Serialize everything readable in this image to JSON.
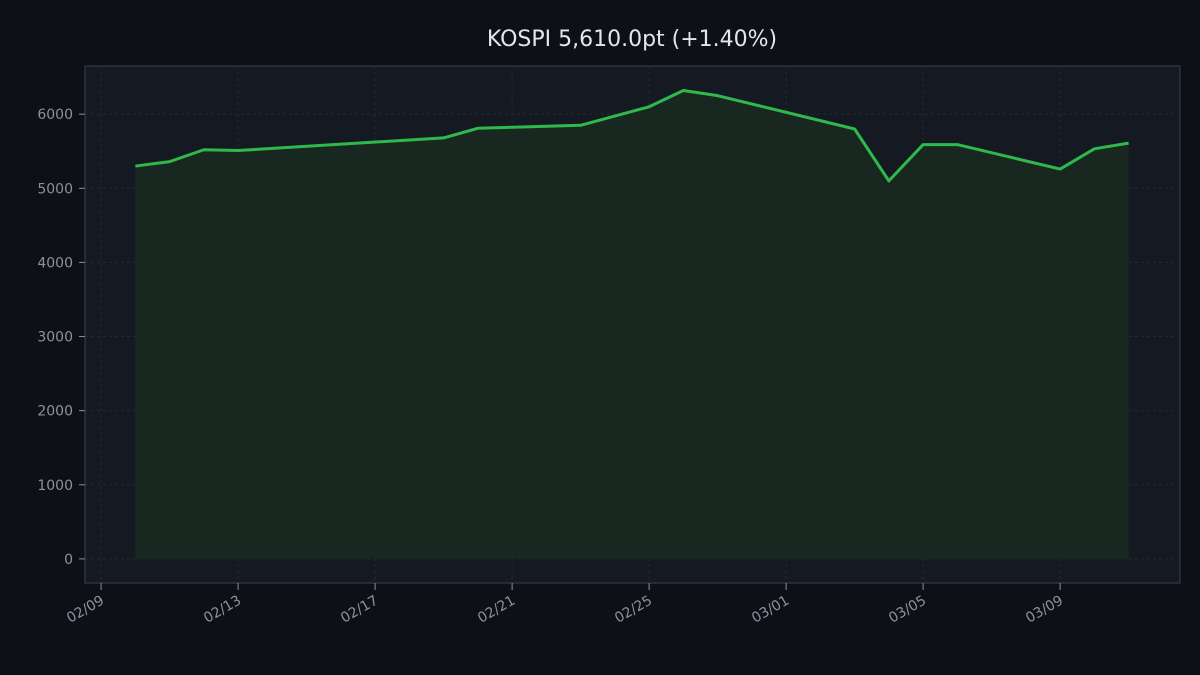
{
  "chart_data": {
    "type": "area",
    "title": "KOSPI   5,610.0pt   (+1.40%)",
    "xlabel": "",
    "ylabel": "",
    "x_base_date": "02/09",
    "x_ticks": [
      {
        "day": 0,
        "label": "02/09"
      },
      {
        "day": 4,
        "label": "02/13"
      },
      {
        "day": 8,
        "label": "02/17"
      },
      {
        "day": 12,
        "label": "02/21"
      },
      {
        "day": 16,
        "label": "02/25"
      },
      {
        "day": 20,
        "label": "03/01"
      },
      {
        "day": 24,
        "label": "03/05"
      },
      {
        "day": 28,
        "label": "03/09"
      }
    ],
    "y_ticks": [
      0,
      1000,
      2000,
      3000,
      4000,
      5000,
      6000
    ],
    "xlim": [
      -0.47,
      31.5
    ],
    "ylim": [
      -325,
      6650
    ],
    "grid": true,
    "series": [
      {
        "name": "KOSPI",
        "color": "#2fb84b",
        "fill": "#182820",
        "points": [
          {
            "day": 1,
            "date": "02/10",
            "value": 5300
          },
          {
            "day": 2,
            "date": "02/11",
            "value": 5360
          },
          {
            "day": 3,
            "date": "02/12",
            "value": 5520
          },
          {
            "day": 4,
            "date": "02/13",
            "value": 5510
          },
          {
            "day": 10,
            "date": "02/19",
            "value": 5680
          },
          {
            "day": 11,
            "date": "02/20",
            "value": 5810
          },
          {
            "day": 14,
            "date": "02/23",
            "value": 5850
          },
          {
            "day": 16,
            "date": "02/25",
            "value": 6100
          },
          {
            "day": 17,
            "date": "02/26",
            "value": 6320
          },
          {
            "day": 18,
            "date": "02/27",
            "value": 6250
          },
          {
            "day": 22,
            "date": "03/03",
            "value": 5800
          },
          {
            "day": 23,
            "date": "03/04",
            "value": 5100
          },
          {
            "day": 24,
            "date": "03/05",
            "value": 5590
          },
          {
            "day": 25,
            "date": "03/06",
            "value": 5590
          },
          {
            "day": 28,
            "date": "03/09",
            "value": 5260
          },
          {
            "day": 29,
            "date": "03/10",
            "value": 5533
          },
          {
            "day": 30,
            "date": "03/11",
            "value": 5610
          }
        ]
      }
    ]
  },
  "colors": {
    "background": "#0d1016",
    "plot_bg": "#151a22",
    "spine": "#3a404a",
    "grid": "#232933"
  }
}
